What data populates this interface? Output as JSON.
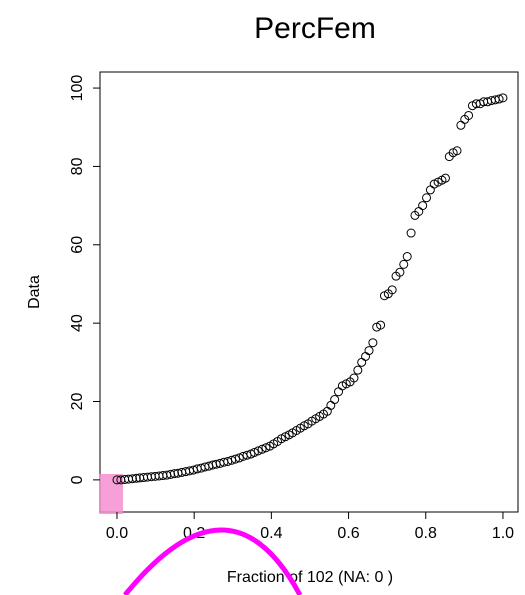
{
  "chart_data": {
    "type": "scatter",
    "title": "PercFem",
    "x_label": "Fraction of 102 (NA: 0 )",
    "y_label": "Data",
    "x": [
      0,
      0.01,
      0.02,
      0.03,
      0.04,
      0.05,
      0.059,
      0.069,
      0.079,
      0.089,
      0.099,
      0.109,
      0.119,
      0.129,
      0.139,
      0.149,
      0.158,
      0.168,
      0.178,
      0.188,
      0.198,
      0.208,
      0.218,
      0.228,
      0.238,
      0.248,
      0.257,
      0.267,
      0.277,
      0.287,
      0.297,
      0.307,
      0.317,
      0.327,
      0.337,
      0.347,
      0.356,
      0.366,
      0.376,
      0.386,
      0.396,
      0.406,
      0.416,
      0.426,
      0.436,
      0.446,
      0.455,
      0.465,
      0.475,
      0.485,
      0.495,
      0.505,
      0.515,
      0.525,
      0.535,
      0.545,
      0.554,
      0.564,
      0.574,
      0.584,
      0.594,
      0.604,
      0.614,
      0.624,
      0.634,
      0.644,
      0.653,
      0.663,
      0.673,
      0.683,
      0.693,
      0.703,
      0.713,
      0.723,
      0.733,
      0.743,
      0.752,
      0.762,
      0.772,
      0.782,
      0.792,
      0.802,
      0.812,
      0.822,
      0.832,
      0.842,
      0.851,
      0.861,
      0.871,
      0.881,
      0.891,
      0.901,
      0.911,
      0.921,
      0.931,
      0.941,
      0.95,
      0.96,
      0.97,
      0.98,
      0.99,
      1
    ],
    "values": [
      0,
      0,
      0.1,
      0.2,
      0.3,
      0.4,
      0.5,
      0.6,
      0.7,
      0.8,
      0.9,
      1.0,
      1.1,
      1.2,
      1.4,
      1.6,
      1.7,
      1.9,
      2.1,
      2.3,
      2.5,
      2.8,
      3.0,
      3.3,
      3.5,
      3.8,
      4.0,
      4.2,
      4.5,
      4.7,
      5.0,
      5.3,
      5.6,
      6.0,
      6.3,
      6.6,
      7.0,
      7.4,
      7.8,
      8.2,
      8.6,
      9.2,
      9.8,
      10.5,
      11.0,
      11.5,
      12.0,
      12.6,
      13.2,
      13.8,
      14.3,
      15.0,
      15.6,
      16.2,
      16.8,
      17.5,
      19.0,
      20.5,
      22.5,
      24.0,
      24.5,
      25.0,
      26.0,
      28.0,
      30.0,
      31.5,
      33.0,
      35.0,
      39.0,
      39.5,
      47.0,
      47.5,
      48.5,
      52.0,
      53.0,
      55.0,
      57.0,
      63.0,
      67.5,
      68.5,
      70.0,
      72.0,
      74.0,
      75.5,
      76.0,
      76.5,
      77.0,
      82.5,
      83.5,
      84.0,
      90.5,
      92.0,
      93.0,
      95.5,
      96.0,
      96.0,
      96.5,
      96.5,
      96.8,
      97.0,
      97.2,
      97.5
    ],
    "color": "#000000",
    "xlim": [
      -0.044,
      1.039
    ],
    "ylim": [
      -8.2,
      104.1
    ],
    "xticks": [
      {
        "value": 0,
        "label": "0.0"
      },
      0.2,
      0.4,
      0.6,
      0.8,
      {
        "value": 1,
        "label": "1.0"
      }
    ],
    "yticks": [
      0,
      20,
      40,
      60,
      80,
      100
    ]
  }
}
